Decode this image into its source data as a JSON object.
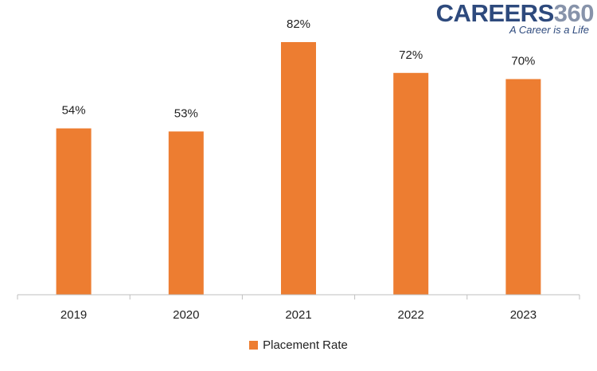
{
  "logo": {
    "brand": "CAREERS",
    "brand_number": "360",
    "tagline": "A Career is a Life"
  },
  "colors": {
    "bar": "#ed7d31",
    "axis": "#bfbfbf",
    "label_text": "#222222"
  },
  "chart_data": {
    "type": "bar",
    "categories": [
      "2019",
      "2020",
      "2021",
      "2022",
      "2023"
    ],
    "series": [
      {
        "name": "Placement Rate",
        "values": [
          54,
          53,
          82,
          72,
          70
        ],
        "data_labels": [
          "54%",
          "53%",
          "82%",
          "72%",
          "70%"
        ]
      }
    ],
    "title": "",
    "xlabel": "",
    "ylabel": "",
    "ylim": [
      0,
      82
    ],
    "grid": false,
    "legend": "bottom"
  }
}
